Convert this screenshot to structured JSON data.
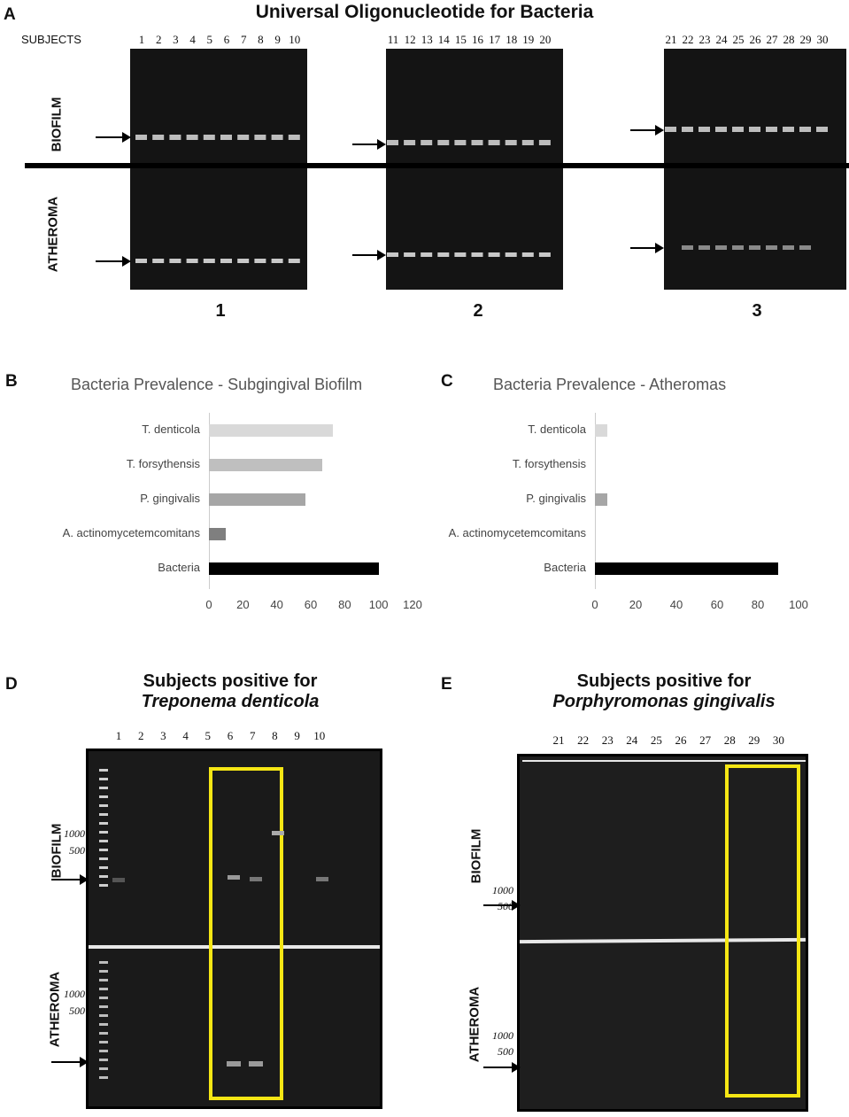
{
  "panelA": {
    "label": "A",
    "title": "Universal Oligonucleotide for Bacteria",
    "subjects_label": "SUBJECTS",
    "lanes": [
      [
        "1",
        "2",
        "3",
        "4",
        "5",
        "6",
        "7",
        "8",
        "9",
        "10"
      ],
      [
        "11",
        "12",
        "13",
        "14",
        "15",
        "16",
        "17",
        "18",
        "19",
        "20"
      ],
      [
        "21",
        "22",
        "23",
        "24",
        "25",
        "26",
        "27",
        "28",
        "29",
        "30"
      ]
    ],
    "row_biofilm": "BIOFILM",
    "row_atheroma": "ATHEROMA",
    "gel_numbers": [
      "1",
      "2",
      "3"
    ]
  },
  "panelB": {
    "label": "B"
  },
  "panelC": {
    "label": "C"
  },
  "chart_data": [
    {
      "type": "bar",
      "orientation": "horizontal",
      "title": "Bacteria Prevalence - Subgingival Biofilm",
      "categories": [
        "T. denticola",
        "T. forsythensis",
        "P. gingivalis",
        "A. actinomycetemcomitans",
        "Bacteria"
      ],
      "values": [
        73,
        67,
        57,
        10,
        100
      ],
      "colors": [
        "#d9d9d9",
        "#bfbfbf",
        "#a6a6a6",
        "#7f7f7f",
        "#000000"
      ],
      "xlim": [
        0,
        120
      ],
      "ticks": [
        "0",
        "20",
        "40",
        "60",
        "80",
        "100",
        "120"
      ]
    },
    {
      "type": "bar",
      "orientation": "horizontal",
      "title": "Bacteria Prevalence - Atheromas",
      "categories": [
        "T. denticola",
        "T. forsythensis",
        "P. gingivalis",
        "A. actinomycetemcomitans",
        "Bacteria"
      ],
      "values": [
        6,
        0,
        6,
        0,
        90
      ],
      "colors": [
        "#d9d9d9",
        "#bfbfbf",
        "#a6a6a6",
        "#7f7f7f",
        "#000000"
      ],
      "xlim": [
        0,
        100
      ],
      "ticks": [
        "0",
        "20",
        "40",
        "60",
        "80",
        "100"
      ]
    }
  ],
  "panelD": {
    "label": "D",
    "title_line1": "Subjects positive for",
    "title_line2": "Treponema denticola",
    "lanes": [
      "1",
      "2",
      "3",
      "4",
      "5",
      "6",
      "7",
      "8",
      "9",
      "10"
    ],
    "row_biofilm": "BIOFILM",
    "row_atheroma": "ATHEROMA",
    "bp_1000": "1000",
    "bp_500": "500"
  },
  "panelE": {
    "label": "E",
    "title_line1": "Subjects positive for",
    "title_line2": "Porphyromonas gingivalis",
    "lanes": [
      "21",
      "22",
      "23",
      "24",
      "25",
      "26",
      "27",
      "28",
      "29",
      "30"
    ],
    "row_biofilm": "BIOFILM",
    "row_atheroma": "ATHEROMA",
    "bp_1000": "1000",
    "bp_500": "500"
  }
}
